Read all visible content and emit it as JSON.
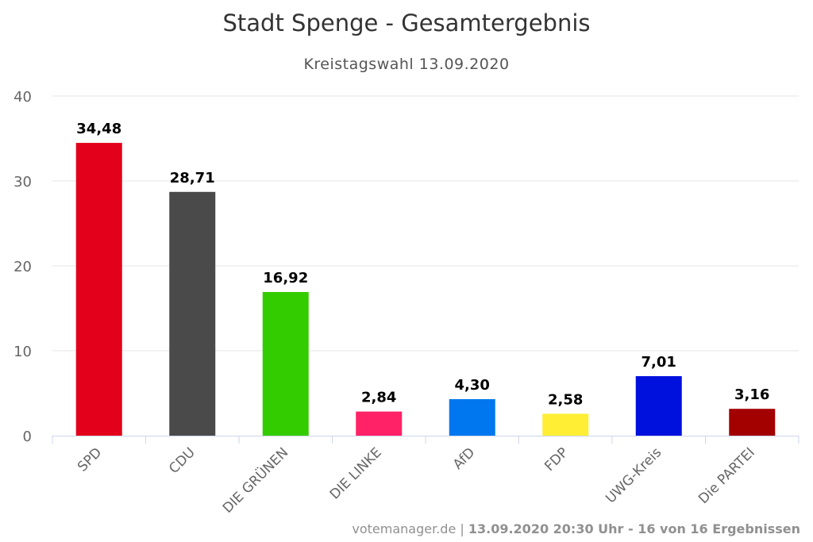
{
  "title": "Stadt Spenge - Gesamtergebnis",
  "subtitle": "Kreistagswahl 13.09.2020",
  "credits": {
    "source": "votemanager.de",
    "separator": "|",
    "info": "13.09.2020 20:30 Uhr - 16 von 16 Ergebnissen"
  },
  "chart_data": {
    "type": "bar",
    "title": "Stadt Spenge - Gesamtergebnis",
    "subtitle": "Kreistagswahl 13.09.2020",
    "xlabel": "",
    "ylabel": "",
    "ylim": [
      0,
      40
    ],
    "yticks": [
      0,
      10,
      20,
      30,
      40
    ],
    "grid": true,
    "categories": [
      "SPD",
      "CDU",
      "DIE GRÜNEN",
      "DIE LINKE",
      "AfD",
      "FDP",
      "UWG-Kreis",
      "Die PARTEI"
    ],
    "values": [
      34.48,
      28.71,
      16.92,
      2.84,
      4.3,
      2.58,
      7.01,
      3.16
    ],
    "data_labels": [
      "34,48",
      "28,71",
      "16,92",
      "2,84",
      "4,30",
      "2,58",
      "7,01",
      "3,16"
    ],
    "colors": [
      "#e2001a",
      "#4a4a4a",
      "#33cc00",
      "#ff2266",
      "#0077ee",
      "#ffee33",
      "#0011dd",
      "#a30000"
    ]
  }
}
